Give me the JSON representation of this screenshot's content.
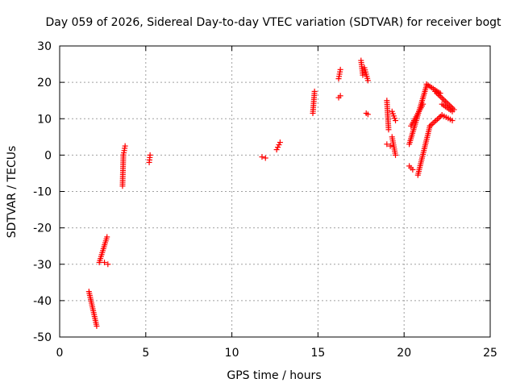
{
  "chart_data": {
    "type": "scatter",
    "title": "Day 059 of 2026, Sidereal Day-to-day VTEC variation (SDTVAR) for receiver bogt",
    "xlabel": "GPS time / hours",
    "ylabel": "SDTVAR / TECUs",
    "xlim": [
      0,
      25
    ],
    "ylim": [
      -50,
      30
    ],
    "xticks": [
      "0",
      "5",
      "10",
      "15",
      "20",
      "25"
    ],
    "yticks": [
      "30",
      "20",
      "10",
      "0",
      "-10",
      "-20",
      "-30",
      "-40",
      "-50"
    ],
    "grid": true,
    "marker": "+",
    "marker_color": "#ff0000",
    "series": [
      {
        "name": "SDTVAR",
        "segments": [
          {
            "x": [
              1.7,
              2.15
            ],
            "y": [
              -37.5,
              -47
            ]
          },
          {
            "x": [
              2.3,
              2.75
            ],
            "y": [
              -29.5,
              -22.5
            ]
          },
          {
            "x": [
              2.6,
              2.8
            ],
            "y": [
              -29.5,
              -30
            ]
          },
          {
            "x": [
              3.65,
              3.7
            ],
            "y": [
              -8.5,
              0
            ]
          },
          {
            "x": [
              3.7,
              3.8
            ],
            "y": [
              0,
              2.5
            ]
          },
          {
            "x": [
              5.2,
              5.25
            ],
            "y": [
              -2,
              0
            ]
          },
          {
            "x": [
              11.75,
              11.95
            ],
            "y": [
              -0.5,
              -0.8
            ]
          },
          {
            "x": [
              12.6,
              12.8
            ],
            "y": [
              1.5,
              3.5
            ]
          },
          {
            "x": [
              14.7,
              14.8
            ],
            "y": [
              11.5,
              17.5
            ]
          },
          {
            "x": [
              16.2,
              16.3
            ],
            "y": [
              21,
              23.5
            ]
          },
          {
            "x": [
              16.2,
              16.3
            ],
            "y": [
              15.8,
              16.3
            ]
          },
          {
            "x": [
              17.5,
              17.6
            ],
            "y": [
              26,
              22
            ]
          },
          {
            "x": [
              17.7,
              17.9
            ],
            "y": [
              24,
              20.5
            ]
          },
          {
            "x": [
              17.8,
              17.9
            ],
            "y": [
              11.5,
              11.2
            ]
          },
          {
            "x": [
              19.0,
              19.1
            ],
            "y": [
              15,
              7
            ]
          },
          {
            "x": [
              19.0,
              19.2
            ],
            "y": [
              3,
              2.5
            ]
          },
          {
            "x": [
              19.3,
              19.5
            ],
            "y": [
              12,
              9.5
            ]
          },
          {
            "x": [
              19.3,
              19.5
            ],
            "y": [
              5,
              0
            ]
          },
          {
            "x": [
              20.3,
              20.5
            ],
            "y": [
              -3,
              -4
            ]
          },
          {
            "x": [
              20.3,
              21.3
            ],
            "y": [
              3,
              19
            ]
          },
          {
            "x": [
              20.4,
              21.1
            ],
            "y": [
              8,
              14
            ]
          },
          {
            "x": [
              21.3,
              22.1
            ],
            "y": [
              19.5,
              17
            ]
          },
          {
            "x": [
              20.8,
              21.5
            ],
            "y": [
              -5.5,
              8
            ]
          },
          {
            "x": [
              21.5,
              22.2
            ],
            "y": [
              8,
              11
            ]
          },
          {
            "x": [
              21.8,
              22.9
            ],
            "y": [
              17.5,
              12.5
            ]
          },
          {
            "x": [
              22.2,
              22.8
            ],
            "y": [
              11,
              9.5
            ]
          },
          {
            "x": [
              22.2,
              22.8
            ],
            "y": [
              14,
              12
            ]
          }
        ]
      }
    ]
  }
}
